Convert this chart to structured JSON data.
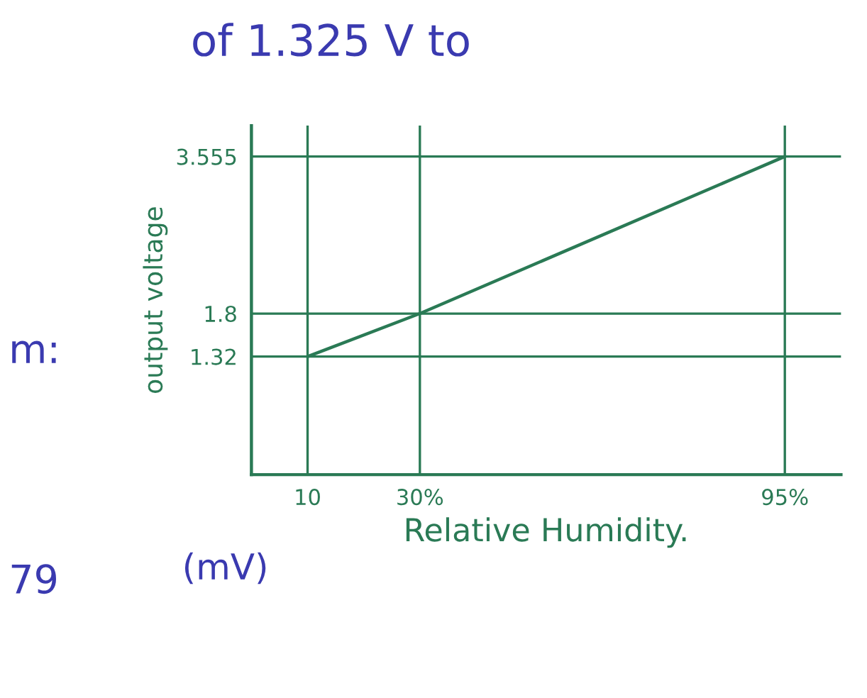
{
  "chart_data": {
    "type": "line",
    "xlabel": "Relative Humidity.",
    "ylabel": "output voltage",
    "x": [
      10,
      30,
      95
    ],
    "series": [
      {
        "color": "#2a7a55",
        "values": [
          1.32,
          1.8,
          3.555
        ]
      }
    ],
    "xlim": [
      0,
      105
    ],
    "ylim": [
      0,
      3.9
    ],
    "xticks": [
      {
        "value": 10,
        "label": "10"
      },
      {
        "value": 30,
        "label": "30%"
      },
      {
        "value": 95,
        "label": "95%"
      }
    ],
    "yticks": [
      {
        "value": 1.32,
        "label": "1.32"
      },
      {
        "value": 1.8,
        "label": "1.8"
      },
      {
        "value": 3.555,
        "label": "3.555"
      }
    ],
    "grid": true,
    "annotations": [
      "of 1.325 V to",
      "(mV)",
      "m:",
      "79"
    ]
  }
}
